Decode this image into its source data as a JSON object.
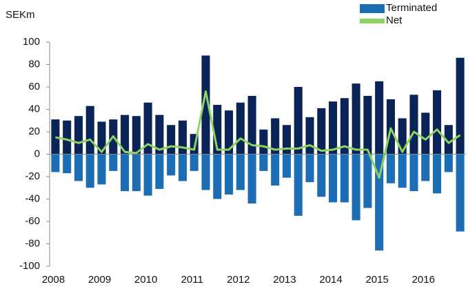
{
  "chart_data": {
    "type": "bar",
    "ylabel": "SEKm",
    "categories": [
      "2008",
      null,
      null,
      null,
      "2009",
      null,
      null,
      null,
      "2010",
      null,
      null,
      null,
      "2011",
      null,
      null,
      null,
      "2012",
      null,
      null,
      null,
      "2013",
      null,
      null,
      null,
      "2014",
      null,
      null,
      null,
      "2015",
      null,
      null,
      null,
      "2016",
      null,
      null,
      null
    ],
    "series": [
      {
        "color": "#0b2457",
        "values": [
          31,
          30,
          34,
          43,
          29,
          31,
          35,
          34,
          46,
          35,
          26,
          30,
          18,
          88,
          44,
          39,
          46,
          52,
          22,
          32,
          26,
          60,
          33,
          41,
          47,
          50,
          63,
          52,
          65,
          49,
          32,
          53,
          37,
          57,
          26,
          86
        ]
      },
      {
        "name": "Terminated",
        "color": "#1c6db3",
        "values": [
          -16,
          -17,
          -24,
          -30,
          -27,
          -15,
          -33,
          -33,
          -37,
          -31,
          -19,
          -24,
          -15,
          -32,
          -40,
          -36,
          -32,
          -44,
          -15,
          -28,
          -21,
          -55,
          -25,
          -38,
          -43,
          -43,
          -59,
          -48,
          -86,
          -26,
          -30,
          -33,
          -24,
          -35,
          -16,
          -69
        ]
      },
      {
        "name": "Net",
        "color": "#8dd35f",
        "type": "line",
        "values": [
          15,
          13,
          10,
          13,
          2,
          16,
          2,
          1,
          9,
          4,
          7,
          6,
          4,
          56,
          4,
          4,
          14,
          8,
          7,
          4,
          5,
          5,
          8,
          3,
          4,
          7,
          4,
          4,
          -21,
          23,
          2,
          20,
          13,
          22,
          10,
          17
        ]
      }
    ],
    "ylim": [
      -100,
      100
    ],
    "yticks": [
      -100,
      -80,
      -60,
      -40,
      -20,
      0,
      20,
      40,
      60,
      80,
      100
    ]
  }
}
